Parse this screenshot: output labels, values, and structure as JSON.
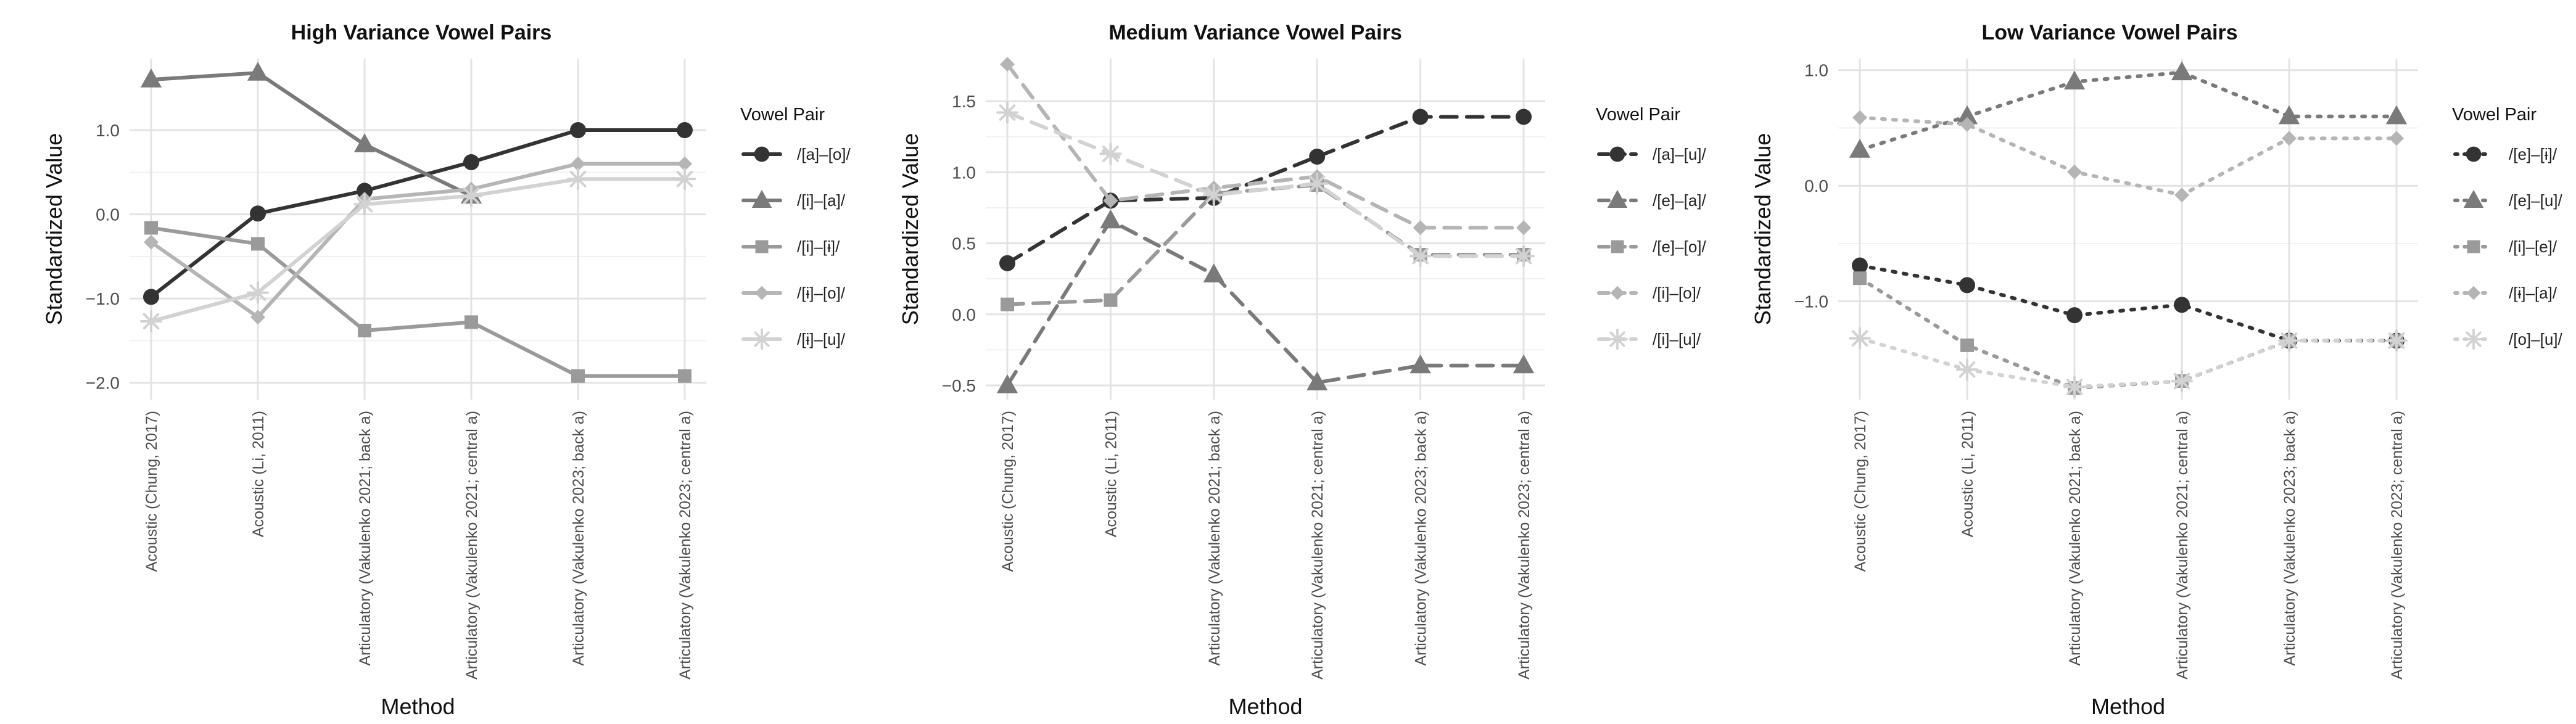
{
  "figure": {
    "xlabel": "Method",
    "ylabel": "Standardized Value",
    "legend_title": "Vowel Pair"
  },
  "chart_data": [
    {
      "type": "line",
      "title": "High Variance Vowel Pairs",
      "xlabel": "Method",
      "ylabel": "Standardized Value",
      "legend_title": "Vowel Pair",
      "legend_position": "right",
      "grid": true,
      "categories": [
        "Acoustic (Chung, 2017)",
        "Acoustic (Li, 2011)",
        "Articulatory (Vakulenko 2021; back a)",
        "Articulatory (Vakulenko 2021; central a)",
        "Articulatory (Vakulenko 2023; back a)",
        "Articulatory (Vakulenko 2023; central a)"
      ],
      "ylim": [
        -2.2,
        1.85
      ],
      "yticks": [
        1.0,
        0.0,
        -1.0,
        -2.0
      ],
      "ytick_labels": [
        "1.0",
        "0.0",
        "−1.0",
        "−2.0"
      ],
      "series": [
        {
          "name": "/[a]–[o]/",
          "color": "#333333",
          "marker": "circle",
          "dash": "solid",
          "values": [
            -0.98,
            0.01,
            0.28,
            0.62,
            1.0,
            1.0
          ]
        },
        {
          "name": "/[i]–[a]/",
          "color": "#7a7a7a",
          "marker": "triangle",
          "dash": "solid",
          "values": [
            1.6,
            1.68,
            0.83,
            0.22,
            null,
            null
          ]
        },
        {
          "name": "/[i]–[ɨ]/",
          "color": "#9a9a9a",
          "marker": "square",
          "dash": "solid",
          "values": [
            -0.16,
            -0.35,
            -1.38,
            -1.28,
            -1.92,
            -1.92
          ]
        },
        {
          "name": "/[ɨ]–[o]/",
          "color": "#b5b5b5",
          "marker": "diamond",
          "dash": "solid",
          "values": [
            -0.33,
            -1.22,
            0.18,
            0.3,
            0.6,
            0.6
          ]
        },
        {
          "name": "/[ɨ]–[u]/",
          "color": "#d2d2d2",
          "marker": "star",
          "dash": "solid",
          "values": [
            -1.27,
            -0.93,
            0.12,
            0.22,
            0.42,
            0.42
          ]
        }
      ]
    },
    {
      "type": "line",
      "title": "Medium Variance Vowel Pairs",
      "xlabel": "Method",
      "ylabel": "Standardized Value",
      "legend_title": "Vowel Pair",
      "legend_position": "right",
      "grid": true,
      "categories": [
        "Acoustic (Chung, 2017)",
        "Acoustic (Li, 2011)",
        "Articulatory (Vakulenko 2021; back a)",
        "Articulatory (Vakulenko 2021; central a)",
        "Articulatory (Vakulenko 2023; back a)",
        "Articulatory (Vakulenko 2023; central a)"
      ],
      "ylim": [
        -0.6,
        1.8
      ],
      "yticks": [
        1.5,
        1.0,
        0.5,
        0.0,
        -0.5
      ],
      "ytick_labels": [
        "1.5",
        "1.0",
        "0.5",
        "0.0",
        "−0.5"
      ],
      "series": [
        {
          "name": "/[a]–[u]/",
          "color": "#333333",
          "marker": "circle",
          "dash": "dash",
          "values": [
            0.36,
            0.8,
            0.82,
            1.11,
            1.39,
            1.39
          ]
        },
        {
          "name": "/[e]–[a]/",
          "color": "#7a7a7a",
          "marker": "triangle",
          "dash": "dash",
          "values": [
            -0.5,
            0.66,
            0.28,
            -0.48,
            -0.36,
            -0.36
          ]
        },
        {
          "name": "/[e]–[o]/",
          "color": "#9a9a9a",
          "marker": "square",
          "dash": "dash",
          "values": [
            0.07,
            0.1,
            0.85,
            0.91,
            0.42,
            0.42
          ]
        },
        {
          "name": "/[i]–[o]/",
          "color": "#b5b5b5",
          "marker": "diamond",
          "dash": "dash",
          "values": [
            1.76,
            0.8,
            0.89,
            0.97,
            0.61,
            0.61
          ]
        },
        {
          "name": "/[i]–[u]/",
          "color": "#d2d2d2",
          "marker": "star",
          "dash": "dash",
          "values": [
            1.42,
            1.13,
            0.84,
            0.92,
            0.41,
            0.41
          ]
        }
      ]
    },
    {
      "type": "line",
      "title": "Low Variance Vowel Pairs",
      "xlabel": "Method",
      "ylabel": "Standardized Value",
      "legend_title": "Vowel Pair",
      "legend_position": "right",
      "grid": true,
      "categories": [
        "Acoustic (Chung, 2017)",
        "Acoustic (Li, 2011)",
        "Articulatory (Vakulenko 2021; back a)",
        "Articulatory (Vakulenko 2021; central a)",
        "Articulatory (Vakulenko 2023; back a)",
        "Articulatory (Vakulenko 2023; central a)"
      ],
      "ylim": [
        -1.85,
        1.1
      ],
      "yticks": [
        1.0,
        0.0,
        -1.0
      ],
      "ytick_labels": [
        "1.0",
        "0.0",
        "−1.0"
      ],
      "series": [
        {
          "name": "/[e]–[ɨ]/",
          "color": "#333333",
          "marker": "circle",
          "dash": "dot",
          "values": [
            -0.69,
            -0.86,
            -1.12,
            -1.03,
            -1.34,
            -1.34
          ]
        },
        {
          "name": "/[e]–[u]/",
          "color": "#7a7a7a",
          "marker": "triangle",
          "dash": "dot",
          "values": [
            0.31,
            0.6,
            0.9,
            0.98,
            0.6,
            0.6
          ]
        },
        {
          "name": "/[i]–[e]/",
          "color": "#9a9a9a",
          "marker": "square",
          "dash": "dot",
          "values": [
            -0.8,
            -1.38,
            -1.75,
            -1.69,
            -1.34,
            -1.34
          ]
        },
        {
          "name": "/[ɨ]–[a]/",
          "color": "#b5b5b5",
          "marker": "diamond",
          "dash": "dot",
          "values": [
            0.59,
            0.53,
            0.12,
            -0.08,
            0.41,
            0.41
          ]
        },
        {
          "name": "/[o]–[u]/",
          "color": "#d2d2d2",
          "marker": "star",
          "dash": "dot",
          "values": [
            -1.32,
            -1.59,
            -1.74,
            -1.69,
            -1.34,
            -1.34
          ]
        }
      ]
    }
  ]
}
